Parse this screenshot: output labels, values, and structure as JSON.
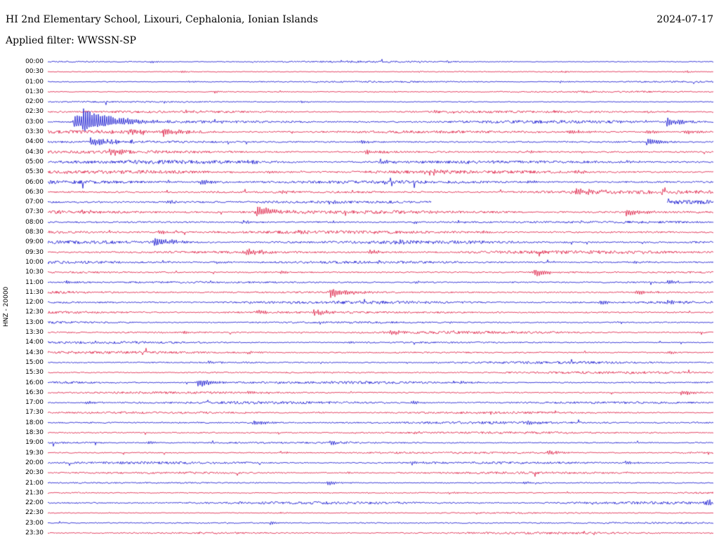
{
  "header": {
    "title": "HI 2nd Elementary School, Lixouri, Cephalonia, Ionian Islands",
    "date": "2024-07-17",
    "filter_label": "Applied filter: WWSSN-SP"
  },
  "axis": {
    "channel_label": "HNZ - 20000"
  },
  "chart_data": {
    "type": "line",
    "subtype": "helicorder-seismogram",
    "title": "HI 2nd Elementary School, Lixouri, Cephalonia, Ionian Islands",
    "date": "2024-07-17",
    "filter": "WWSSN-SP",
    "channel": "HNZ",
    "scale": "20000",
    "row_duration_minutes": 30,
    "legend_position": "none",
    "grid": false,
    "colors": {
      "blue": "#0b0bcd",
      "red": "#dc143c"
    },
    "rows": [
      {
        "time": "00:00",
        "color": "blue",
        "noise": 0.9,
        "events": [
          {
            "x": 0.155,
            "amp": 2.2
          },
          {
            "x": 0.44,
            "amp": 1.8
          },
          {
            "x": 0.6,
            "amp": 1.5
          }
        ]
      },
      {
        "time": "00:30",
        "color": "red",
        "noise": 0.9,
        "events": [
          {
            "x": 0.2,
            "amp": 2.4
          },
          {
            "x": 0.555,
            "amp": 1.6
          },
          {
            "x": 0.77,
            "amp": 1.8
          },
          {
            "x": 0.955,
            "amp": 2.4
          }
        ]
      },
      {
        "time": "01:00",
        "color": "blue",
        "noise": 0.9,
        "events": [
          {
            "x": 0.21,
            "amp": 1.8
          },
          {
            "x": 0.77,
            "amp": 2.2
          }
        ]
      },
      {
        "time": "01:30",
        "color": "red",
        "noise": 1.0,
        "events": [
          {
            "x": 0.25,
            "amp": 2.2
          },
          {
            "x": 0.52,
            "amp": 1.8
          },
          {
            "x": 0.8,
            "amp": 1.8
          }
        ]
      },
      {
        "time": "02:00",
        "color": "blue",
        "noise": 1.0,
        "events": [
          {
            "x": 0.38,
            "amp": 2.2
          },
          {
            "x": 0.63,
            "amp": 1.8
          }
        ]
      },
      {
        "time": "02:30",
        "color": "red",
        "noise": 1.3,
        "events": [
          {
            "x": 0.205,
            "amp": 3.0
          },
          {
            "x": 0.58,
            "amp": 2.2
          },
          {
            "x": 0.9,
            "amp": 2.0
          }
        ]
      },
      {
        "time": "03:00",
        "color": "blue",
        "noise": 1.6,
        "events": [
          {
            "x": 0.038,
            "amp": 13
          },
          {
            "x": 0.052,
            "amp": 14
          },
          {
            "x": 0.25,
            "amp": 3
          },
          {
            "x": 0.93,
            "amp": 7
          }
        ]
      },
      {
        "time": "03:30",
        "color": "red",
        "noise": 1.7,
        "events": [
          {
            "x": 0.121,
            "amp": 6
          },
          {
            "x": 0.174,
            "amp": 7
          },
          {
            "x": 0.783,
            "amp": 5
          },
          {
            "x": 0.899,
            "amp": 4
          },
          {
            "x": 0.957,
            "amp": 4
          }
        ]
      },
      {
        "time": "04:00",
        "color": "blue",
        "noise": 1.7,
        "events": [
          {
            "x": 0.063,
            "amp": 8
          },
          {
            "x": 0.47,
            "amp": 3
          },
          {
            "x": 0.899,
            "amp": 6
          }
        ]
      },
      {
        "time": "04:30",
        "color": "red",
        "noise": 1.7,
        "events": [
          {
            "x": 0.092,
            "amp": 6
          },
          {
            "x": 0.477,
            "amp": 5
          },
          {
            "x": 0.72,
            "amp": 3
          }
        ]
      },
      {
        "time": "05:00",
        "color": "blue",
        "noise": 1.9,
        "events": [
          {
            "x": 0.3,
            "amp": 3
          },
          {
            "x": 0.5,
            "amp": 4
          },
          {
            "x": 0.63,
            "amp": 3
          },
          {
            "x": 0.87,
            "amp": 3
          }
        ]
      },
      {
        "time": "05:30",
        "color": "red",
        "noise": 1.9,
        "events": [
          {
            "x": 0.33,
            "amp": 3
          },
          {
            "x": 0.572,
            "amp": 5
          },
          {
            "x": 0.79,
            "amp": 4
          }
        ]
      },
      {
        "time": "06:00",
        "color": "blue",
        "noise": 1.9,
        "events": [
          {
            "x": 0.229,
            "amp": 5
          },
          {
            "x": 0.503,
            "amp": 3
          },
          {
            "x": 0.72,
            "amp": 3
          }
        ]
      },
      {
        "time": "06:30",
        "color": "red",
        "noise": 1.9,
        "events": [
          {
            "x": 0.35,
            "amp": 3
          },
          {
            "x": 0.793,
            "amp": 7
          },
          {
            "x": 0.92,
            "amp": 4
          }
        ]
      },
      {
        "time": "07:00",
        "color": "blue",
        "noise": 2.0,
        "gap": [
          0.577,
          0.93
        ],
        "events": [
          {
            "x": 0.18,
            "amp": 3
          },
          {
            "x": 0.42,
            "amp": 3
          }
        ]
      },
      {
        "time": "07:30",
        "color": "red",
        "noise": 1.9,
        "events": [
          {
            "x": 0.05,
            "amp": 3
          },
          {
            "x": 0.313,
            "amp": 9
          },
          {
            "x": 0.868,
            "amp": 6
          }
        ]
      },
      {
        "time": "08:00",
        "color": "blue",
        "noise": 1.8,
        "events": [
          {
            "x": 0.292,
            "amp": 3
          },
          {
            "x": 0.55,
            "amp": 2.5
          }
        ]
      },
      {
        "time": "08:30",
        "color": "red",
        "noise": 1.8,
        "events": [
          {
            "x": 0.166,
            "amp": 4
          },
          {
            "x": 0.371,
            "amp": 4
          },
          {
            "x": 0.65,
            "amp": 3
          }
        ]
      },
      {
        "time": "09:00",
        "color": "blue",
        "noise": 1.8,
        "events": [
          {
            "x": 0.08,
            "amp": 3
          },
          {
            "x": 0.16,
            "amp": 8
          },
          {
            "x": 0.52,
            "amp": 4
          }
        ]
      },
      {
        "time": "09:30",
        "color": "red",
        "noise": 1.8,
        "events": [
          {
            "x": 0.297,
            "amp": 6
          },
          {
            "x": 0.482,
            "amp": 4
          }
        ]
      },
      {
        "time": "10:00",
        "color": "blue",
        "noise": 1.6,
        "events": [
          {
            "x": 0.25,
            "amp": 2.5
          },
          {
            "x": 0.88,
            "amp": 3
          }
        ]
      },
      {
        "time": "10:30",
        "color": "red",
        "noise": 1.6,
        "events": [
          {
            "x": 0.35,
            "amp": 3
          },
          {
            "x": 0.73,
            "amp": 7
          }
        ]
      },
      {
        "time": "11:00",
        "color": "blue",
        "noise": 1.6,
        "events": [
          {
            "x": 0.028,
            "amp": 3
          },
          {
            "x": 0.55,
            "amp": 2.5
          },
          {
            "x": 0.93,
            "amp": 4
          }
        ]
      },
      {
        "time": "11:30",
        "color": "red",
        "noise": 1.6,
        "events": [
          {
            "x": 0.424,
            "amp": 8
          },
          {
            "x": 0.883,
            "amp": 5
          }
        ]
      },
      {
        "time": "12:00",
        "color": "blue",
        "noise": 1.6,
        "events": [
          {
            "x": 0.83,
            "amp": 4
          },
          {
            "x": 0.93,
            "amp": 4
          }
        ]
      },
      {
        "time": "12:30",
        "color": "red",
        "noise": 1.6,
        "events": [
          {
            "x": 0.313,
            "amp": 4
          },
          {
            "x": 0.398,
            "amp": 6
          }
        ]
      },
      {
        "time": "13:00",
        "color": "blue",
        "noise": 1.3,
        "events": [
          {
            "x": 0.6,
            "amp": 2
          }
        ]
      },
      {
        "time": "13:30",
        "color": "red",
        "noise": 1.4,
        "events": [
          {
            "x": 0.2,
            "amp": 2.5
          },
          {
            "x": 0.514,
            "amp": 5
          }
        ]
      },
      {
        "time": "14:00",
        "color": "blue",
        "noise": 1.2,
        "events": [
          {
            "x": 0.45,
            "amp": 2
          }
        ]
      },
      {
        "time": "14:30",
        "color": "red",
        "noise": 1.4,
        "events": [
          {
            "x": 0.3,
            "amp": 2.5
          },
          {
            "x": 0.93,
            "amp": 3
          }
        ]
      },
      {
        "time": "15:00",
        "color": "blue",
        "noise": 1.3,
        "events": [
          {
            "x": 0.24,
            "amp": 2.5
          }
        ]
      },
      {
        "time": "15:30",
        "color": "red",
        "noise": 1.3,
        "events": [
          {
            "x": 0.5,
            "amp": 2
          }
        ]
      },
      {
        "time": "16:00",
        "color": "blue",
        "noise": 1.4,
        "events": [
          {
            "x": 0.224,
            "amp": 7
          },
          {
            "x": 0.62,
            "amp": 3
          }
        ]
      },
      {
        "time": "16:30",
        "color": "red",
        "noise": 1.4,
        "events": [
          {
            "x": 0.3,
            "amp": 2.5
          },
          {
            "x": 0.951,
            "amp": 5
          }
        ]
      },
      {
        "time": "17:00",
        "color": "blue",
        "noise": 1.4,
        "events": [
          {
            "x": 0.055,
            "amp": 3
          },
          {
            "x": 0.545,
            "amp": 3.5
          }
        ]
      },
      {
        "time": "17:30",
        "color": "red",
        "noise": 1.2,
        "events": [
          {
            "x": 0.4,
            "amp": 2
          }
        ]
      },
      {
        "time": "18:00",
        "color": "blue",
        "noise": 1.5,
        "events": [
          {
            "x": 0.308,
            "amp": 5
          },
          {
            "x": 0.719,
            "amp": 3
          }
        ]
      },
      {
        "time": "18:30",
        "color": "red",
        "noise": 1.5,
        "events": [
          {
            "x": 0.55,
            "amp": 2.5
          },
          {
            "x": 0.75,
            "amp": 2.5
          }
        ]
      },
      {
        "time": "19:00",
        "color": "blue",
        "noise": 1.4,
        "events": [
          {
            "x": 0.15,
            "amp": 2.5
          },
          {
            "x": 0.424,
            "amp": 4
          }
        ]
      },
      {
        "time": "19:30",
        "color": "red",
        "noise": 1.3,
        "events": [
          {
            "x": 0.35,
            "amp": 2
          },
          {
            "x": 0.751,
            "amp": 4
          },
          {
            "x": 0.99,
            "amp": 3
          }
        ]
      },
      {
        "time": "20:00",
        "color": "blue",
        "noise": 1.3,
        "events": [
          {
            "x": 0.545,
            "amp": 3.5
          },
          {
            "x": 0.868,
            "amp": 3.5
          }
        ]
      },
      {
        "time": "20:30",
        "color": "red",
        "noise": 1.2,
        "events": [
          {
            "x": 0.45,
            "amp": 2
          }
        ]
      },
      {
        "time": "21:00",
        "color": "blue",
        "noise": 1.3,
        "events": [
          {
            "x": 0.419,
            "amp": 4
          },
          {
            "x": 0.714,
            "amp": 3
          }
        ]
      },
      {
        "time": "21:30",
        "color": "red",
        "noise": 1.2,
        "events": [
          {
            "x": 0.6,
            "amp": 2
          }
        ]
      },
      {
        "time": "22:00",
        "color": "blue",
        "noise": 1.5,
        "events": [
          {
            "x": 0.988,
            "amp": 5
          }
        ]
      },
      {
        "time": "22:30",
        "color": "red",
        "noise": 1.1,
        "events": [
          {
            "x": 0.35,
            "amp": 2
          }
        ]
      },
      {
        "time": "23:00",
        "color": "blue",
        "noise": 1.3,
        "events": [
          {
            "x": 0.334,
            "amp": 3
          }
        ]
      },
      {
        "time": "23:30",
        "color": "red",
        "noise": 1.1,
        "events": [
          {
            "x": 0.7,
            "amp": 2
          }
        ]
      }
    ]
  }
}
